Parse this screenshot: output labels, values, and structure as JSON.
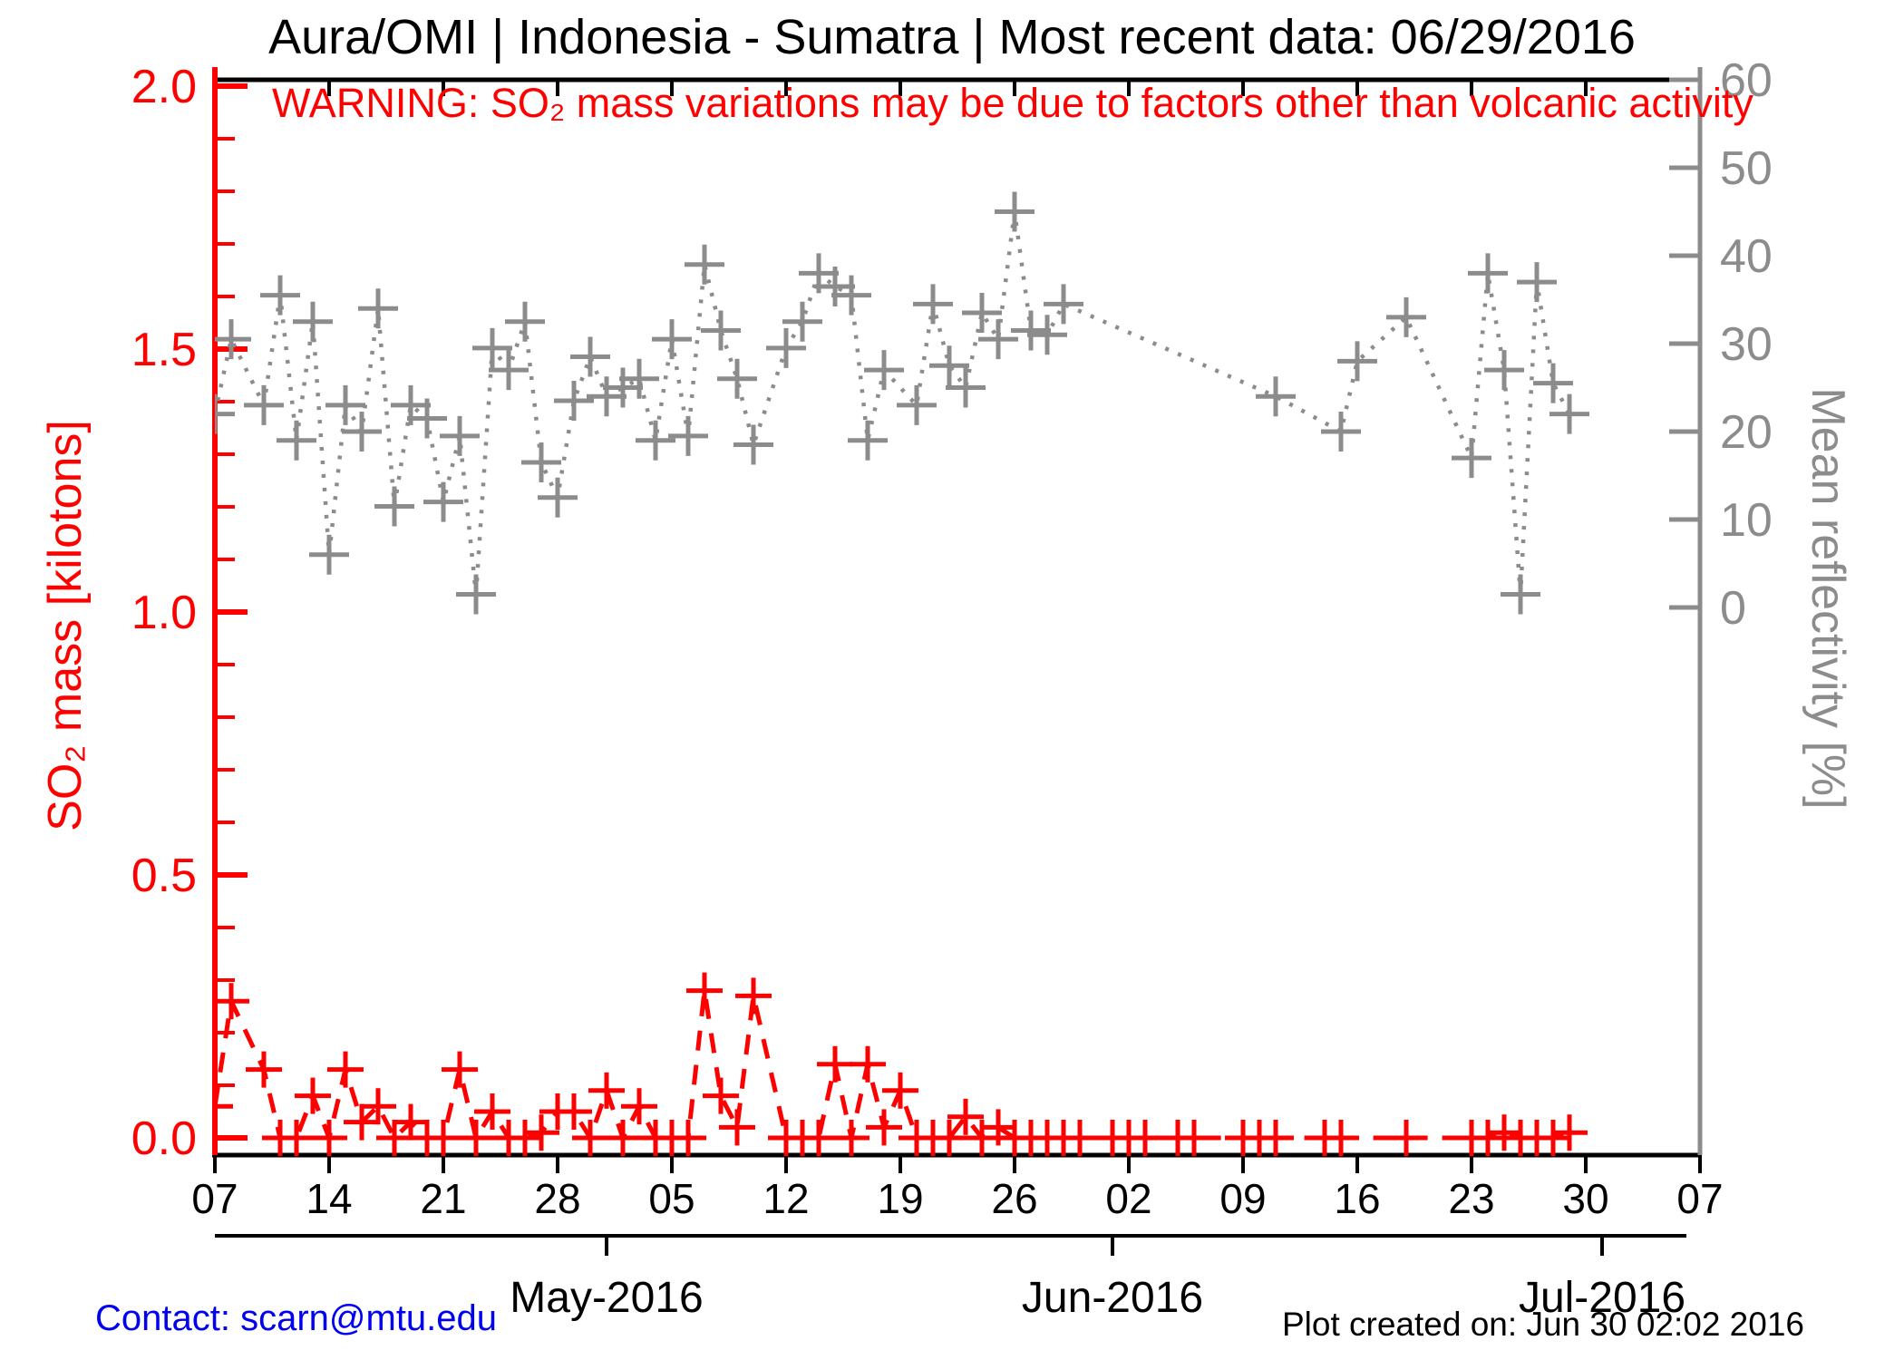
{
  "title": "Aura/OMI | Indonesia - Sumatra | Most recent data: 06/29/2016",
  "warning": "WARNING: SO₂ mass variations may be due to factors other than volcanic activity",
  "footer": {
    "contact": "Contact: scarn@mtu.edu",
    "created": "Plot created on: Jun 30 02:02 2016"
  },
  "chart_data": {
    "type": "line",
    "title": "Aura/OMI | Indonesia - Sumatra | Most recent data: 06/29/2016",
    "x_axis": {
      "start_date": "04/07/2016",
      "end_date": "07/07/2016",
      "tick_interval_days": 7,
      "tick_labels": [
        "07",
        "14",
        "21",
        "28",
        "05",
        "12",
        "19",
        "26",
        "02",
        "09",
        "16",
        "23",
        "30",
        "07"
      ],
      "month_labels": [
        "May-2016",
        "Jun-2016",
        "Jul-2016"
      ],
      "month_tick_days": [
        24,
        55,
        85
      ]
    },
    "left_axis": {
      "label": "SO₂ mass [kilotons]",
      "color": "#ff0000",
      "min": 0.0,
      "max": 2.0,
      "tick_labels": [
        "0.0",
        "0.5",
        "1.0",
        "1.5",
        "2.0"
      ],
      "minor_step": 0.1
    },
    "right_axis": {
      "label": "Mean reflectivity [%]",
      "color": "#8c8c8c",
      "min": 0,
      "max": 60,
      "tick_labels": [
        "0",
        "10",
        "20",
        "30",
        "40",
        "50",
        "60"
      ]
    },
    "legend": "none",
    "grid": false,
    "series": [
      {
        "name": "SO2 mass [kilotons]",
        "axis": "left",
        "color": "#ff0000",
        "line_style": "dashed",
        "marker": "plus",
        "points": [
          [
            "04-07",
            0.06
          ],
          [
            "04-08",
            0.26
          ],
          [
            "04-10",
            0.13
          ],
          [
            "04-11",
            0.0
          ],
          [
            "04-12",
            0.0
          ],
          [
            "04-13",
            0.08
          ],
          [
            "04-14",
            0.0
          ],
          [
            "04-15",
            0.13
          ],
          [
            "04-16",
            0.03
          ],
          [
            "04-17",
            0.06
          ],
          [
            "04-18",
            0.0
          ],
          [
            "04-19",
            0.03
          ],
          [
            "04-20",
            0.0
          ],
          [
            "04-21",
            0.0
          ],
          [
            "04-22",
            0.13
          ],
          [
            "04-23",
            0.0
          ],
          [
            "04-24",
            0.05
          ],
          [
            "04-25",
            0.0
          ],
          [
            "04-26",
            0.0
          ],
          [
            "04-27",
            0.01
          ],
          [
            "04-28",
            0.05
          ],
          [
            "04-29",
            0.05
          ],
          [
            "04-30",
            0.0
          ],
          [
            "05-01",
            0.09
          ],
          [
            "05-02",
            0.0
          ],
          [
            "05-03",
            0.06
          ],
          [
            "05-04",
            0.0
          ],
          [
            "05-05",
            0.0
          ],
          [
            "05-06",
            0.0
          ],
          [
            "05-07",
            0.28
          ],
          [
            "05-08",
            0.08
          ],
          [
            "05-09",
            0.02
          ],
          [
            "05-10",
            0.27
          ],
          [
            "05-12",
            0.0
          ],
          [
            "05-13",
            0.0
          ],
          [
            "05-14",
            0.0
          ],
          [
            "05-15",
            0.14
          ],
          [
            "05-16",
            0.0
          ],
          [
            "05-17",
            0.14
          ],
          [
            "05-18",
            0.02
          ],
          [
            "05-19",
            0.09
          ],
          [
            "05-20",
            0.0
          ],
          [
            "05-21",
            0.0
          ],
          [
            "05-22",
            0.0
          ],
          [
            "05-23",
            0.04
          ],
          [
            "05-24",
            0.0
          ],
          [
            "05-25",
            0.02
          ],
          [
            "05-26",
            0.0
          ],
          [
            "05-27",
            0.0
          ],
          [
            "05-28",
            0.0
          ],
          [
            "05-29",
            0.0
          ],
          [
            "05-30",
            0.0
          ],
          [
            "06-01",
            0.0
          ],
          [
            "06-02",
            0.0
          ],
          [
            "06-03",
            0.0
          ],
          [
            "06-05",
            0.0
          ],
          [
            "06-06",
            0.0
          ],
          [
            "06-09",
            0.0
          ],
          [
            "06-10",
            0.0
          ],
          [
            "06-11",
            0.0
          ],
          [
            "06-14",
            0.0
          ],
          [
            "06-15",
            0.0
          ],
          [
            "06-19",
            0.0
          ],
          [
            "06-23",
            0.0
          ],
          [
            "06-24",
            0.0
          ],
          [
            "06-25",
            0.01
          ],
          [
            "06-26",
            0.0
          ],
          [
            "06-27",
            0.0
          ],
          [
            "06-28",
            0.0
          ],
          [
            "06-29",
            0.01
          ]
        ]
      },
      {
        "name": "Mean reflectivity [%]",
        "axis": "right",
        "color": "#8c8c8c",
        "line_style": "dotted",
        "marker": "plus",
        "points": [
          [
            "04-07",
            22
          ],
          [
            "04-08",
            30.5
          ],
          [
            "04-10",
            23
          ],
          [
            "04-11",
            35.5
          ],
          [
            "04-12",
            19
          ],
          [
            "04-13",
            32.5
          ],
          [
            "04-14",
            6
          ],
          [
            "04-15",
            23
          ],
          [
            "04-16",
            20
          ],
          [
            "04-17",
            34
          ],
          [
            "04-18",
            11.5
          ],
          [
            "04-19",
            23
          ],
          [
            "04-20",
            21.5
          ],
          [
            "04-21",
            12
          ],
          [
            "04-22",
            19.5
          ],
          [
            "04-23",
            1.5
          ],
          [
            "04-24",
            29.5
          ],
          [
            "04-25",
            27
          ],
          [
            "04-26",
            32.5
          ],
          [
            "04-27",
            16.5
          ],
          [
            "04-28",
            12.5
          ],
          [
            "04-29",
            23.5
          ],
          [
            "04-30",
            28.5
          ],
          [
            "05-01",
            24
          ],
          [
            "05-02",
            25
          ],
          [
            "05-03",
            26
          ],
          [
            "05-04",
            19
          ],
          [
            "05-05",
            30.5
          ],
          [
            "05-06",
            19.5
          ],
          [
            "05-07",
            39
          ],
          [
            "05-08",
            31.5
          ],
          [
            "05-09",
            26
          ],
          [
            "05-10",
            18.5
          ],
          [
            "05-12",
            29.5
          ],
          [
            "05-13",
            32.5
          ],
          [
            "05-14",
            38
          ],
          [
            "05-15",
            36.5
          ],
          [
            "05-16",
            35.5
          ],
          [
            "05-17",
            19
          ],
          [
            "05-18",
            27
          ],
          [
            "05-20",
            23
          ],
          [
            "05-21",
            34.5
          ],
          [
            "05-22",
            27.5
          ],
          [
            "05-23",
            25
          ],
          [
            "05-24",
            33.5
          ],
          [
            "05-25",
            30.5
          ],
          [
            "05-26",
            45
          ],
          [
            "05-27",
            31.5
          ],
          [
            "05-28",
            31
          ],
          [
            "05-29",
            34.5
          ],
          [
            "06-11",
            24
          ],
          [
            "06-15",
            20
          ],
          [
            "06-16",
            28
          ],
          [
            "06-19",
            33
          ],
          [
            "06-23",
            17
          ],
          [
            "06-24",
            38
          ],
          [
            "06-25",
            27
          ],
          [
            "06-26",
            1.5
          ],
          [
            "06-27",
            37
          ],
          [
            "06-28",
            25.5
          ],
          [
            "06-29",
            22
          ]
        ]
      }
    ]
  }
}
